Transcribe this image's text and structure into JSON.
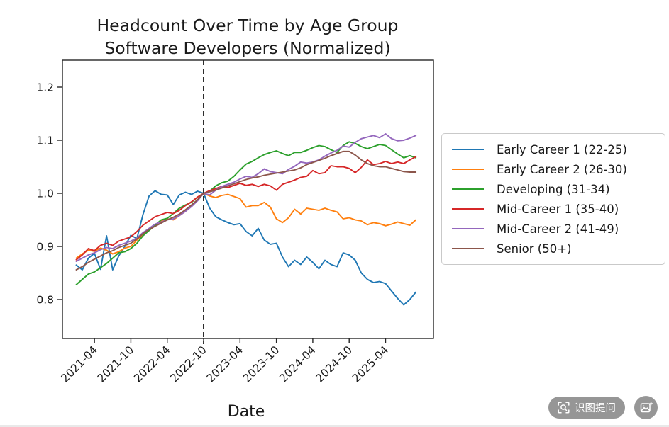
{
  "title": {
    "line1": "Headcount Over Time by Age Group",
    "line2": "Software Developers (Normalized)"
  },
  "axes": {
    "xlabel": "Date",
    "y_ticks": [
      {
        "label": "0.8",
        "value": 0.8
      },
      {
        "label": "0.9",
        "value": 0.9
      },
      {
        "label": "1.0",
        "value": 1.0
      },
      {
        "label": "1.1",
        "value": 1.1
      },
      {
        "label": "1.2",
        "value": 1.2
      }
    ],
    "x_ticks": [
      {
        "label": "2021-04",
        "month": "2021-04"
      },
      {
        "label": "2021-10",
        "month": "2021-10"
      },
      {
        "label": "2022-04",
        "month": "2022-04"
      },
      {
        "label": "2022-10",
        "month": "2022-10"
      },
      {
        "label": "2023-04",
        "month": "2023-04"
      },
      {
        "label": "2023-10",
        "month": "2023-10"
      },
      {
        "label": "2024-04",
        "month": "2024-04"
      },
      {
        "label": "2024-10",
        "month": "2024-10"
      },
      {
        "label": "2025-04",
        "month": "2025-04"
      }
    ]
  },
  "chart_data": {
    "type": "line",
    "title_line1": "Headcount Over Time by Age Group",
    "title_line2": "Software Developers (Normalized)",
    "xlabel": "Date",
    "ylim": [
      0.73,
      1.25
    ],
    "grid": false,
    "legend_position": "right-outside",
    "normalization_note_visible": false,
    "vline": {
      "x": "2022-10",
      "style": "dashed",
      "color": "#000000"
    },
    "months": [
      "2021-01",
      "2021-02",
      "2021-03",
      "2021-04",
      "2021-05",
      "2021-06",
      "2021-07",
      "2021-08",
      "2021-09",
      "2021-10",
      "2021-11",
      "2021-12",
      "2022-01",
      "2022-02",
      "2022-03",
      "2022-04",
      "2022-05",
      "2022-06",
      "2022-07",
      "2022-08",
      "2022-09",
      "2022-10",
      "2022-11",
      "2022-12",
      "2023-01",
      "2023-02",
      "2023-03",
      "2023-04",
      "2023-05",
      "2023-06",
      "2023-07",
      "2023-08",
      "2023-09",
      "2023-10",
      "2023-11",
      "2023-12",
      "2024-01",
      "2024-02",
      "2024-03",
      "2024-04",
      "2024-05",
      "2024-06",
      "2024-07",
      "2024-08",
      "2024-09",
      "2024-10",
      "2024-11",
      "2024-12",
      "2025-01",
      "2025-02",
      "2025-03",
      "2025-04",
      "2025-05",
      "2025-06",
      "2025-07",
      "2025-08",
      "2025-09"
    ],
    "series": [
      {
        "name": "Early Career 1 (22-25)",
        "color": "#1f77b4",
        "values": [
          0.865,
          0.856,
          0.878,
          0.887,
          0.857,
          0.92,
          0.856,
          0.882,
          0.9,
          0.921,
          0.915,
          0.96,
          0.995,
          1.005,
          0.998,
          0.997,
          0.979,
          0.997,
          1.002,
          0.998,
          1.004,
          1.0,
          0.972,
          0.956,
          0.95,
          0.945,
          0.941,
          0.943,
          0.928,
          0.92,
          0.934,
          0.912,
          0.904,
          0.906,
          0.88,
          0.862,
          0.874,
          0.866,
          0.88,
          0.87,
          0.858,
          0.874,
          0.866,
          0.862,
          0.888,
          0.884,
          0.874,
          0.85,
          0.838,
          0.832,
          0.834,
          0.83,
          0.816,
          0.802,
          0.79,
          0.8,
          0.814
        ]
      },
      {
        "name": "Early Career 2 (26-30)",
        "color": "#ff7f0e",
        "values": [
          0.878,
          0.886,
          0.893,
          0.891,
          0.897,
          0.893,
          0.886,
          0.89,
          0.897,
          0.9,
          0.912,
          0.922,
          0.93,
          0.94,
          0.948,
          0.952,
          0.95,
          0.958,
          0.966,
          0.976,
          0.988,
          1.0,
          0.995,
          0.992,
          0.996,
          0.998,
          0.994,
          0.99,
          0.974,
          0.977,
          0.977,
          0.983,
          0.974,
          0.952,
          0.945,
          0.954,
          0.97,
          0.961,
          0.972,
          0.97,
          0.968,
          0.972,
          0.968,
          0.965,
          0.952,
          0.954,
          0.95,
          0.948,
          0.941,
          0.945,
          0.943,
          0.939,
          0.942,
          0.946,
          0.943,
          0.94,
          0.95
        ]
      },
      {
        "name": "Developing (31-34)",
        "color": "#2ca02c",
        "values": [
          0.828,
          0.838,
          0.848,
          0.852,
          0.86,
          0.868,
          0.878,
          0.888,
          0.89,
          0.896,
          0.906,
          0.92,
          0.93,
          0.94,
          0.95,
          0.953,
          0.962,
          0.972,
          0.978,
          0.983,
          0.993,
          1.0,
          1.004,
          1.014,
          1.02,
          1.023,
          1.032,
          1.044,
          1.055,
          1.06,
          1.067,
          1.073,
          1.077,
          1.08,
          1.075,
          1.071,
          1.077,
          1.077,
          1.081,
          1.086,
          1.09,
          1.088,
          1.082,
          1.077,
          1.09,
          1.097,
          1.094,
          1.088,
          1.084,
          1.088,
          1.092,
          1.09,
          1.082,
          1.074,
          1.067,
          1.071,
          1.067
        ]
      },
      {
        "name": "Mid-Career 1 (35-40)",
        "color": "#d62728",
        "values": [
          0.875,
          0.884,
          0.896,
          0.892,
          0.902,
          0.906,
          0.902,
          0.91,
          0.914,
          0.918,
          0.928,
          0.94,
          0.948,
          0.956,
          0.96,
          0.964,
          0.962,
          0.968,
          0.977,
          0.984,
          0.993,
          1.0,
          1.005,
          1.009,
          1.013,
          1.011,
          1.015,
          1.019,
          1.015,
          1.017,
          1.013,
          1.017,
          1.014,
          1.006,
          1.017,
          1.021,
          1.025,
          1.03,
          1.032,
          1.043,
          1.037,
          1.039,
          1.052,
          1.05,
          1.05,
          1.047,
          1.039,
          1.049,
          1.063,
          1.054,
          1.056,
          1.06,
          1.056,
          1.059,
          1.056,
          1.063,
          1.069
        ]
      },
      {
        "name": "Mid-Career 2 (41-49)",
        "color": "#9467bd",
        "values": [
          0.872,
          0.878,
          0.884,
          0.888,
          0.894,
          0.898,
          0.896,
          0.902,
          0.906,
          0.91,
          0.916,
          0.926,
          0.934,
          0.942,
          0.946,
          0.95,
          0.952,
          0.958,
          0.966,
          0.975,
          0.986,
          1.0,
          0.997,
          1.006,
          1.013,
          1.017,
          1.021,
          1.027,
          1.032,
          1.03,
          1.037,
          1.046,
          1.041,
          1.039,
          1.037,
          1.045,
          1.051,
          1.059,
          1.057,
          1.059,
          1.063,
          1.07,
          1.076,
          1.081,
          1.089,
          1.087,
          1.096,
          1.103,
          1.106,
          1.109,
          1.105,
          1.112,
          1.103,
          1.099,
          1.1,
          1.104,
          1.109
        ]
      },
      {
        "name": "Senior (50+)",
        "color": "#8c564b",
        "values": [
          0.856,
          0.862,
          0.87,
          0.876,
          0.882,
          0.888,
          0.892,
          0.898,
          0.902,
          0.906,
          0.914,
          0.924,
          0.932,
          0.938,
          0.944,
          0.95,
          0.955,
          0.961,
          0.969,
          0.978,
          0.988,
          1.0,
          1.003,
          1.006,
          1.01,
          1.014,
          1.018,
          1.022,
          1.026,
          1.029,
          1.031,
          1.034,
          1.036,
          1.038,
          1.04,
          1.042,
          1.044,
          1.048,
          1.054,
          1.058,
          1.062,
          1.066,
          1.071,
          1.075,
          1.079,
          1.079,
          1.072,
          1.063,
          1.056,
          1.052,
          1.05,
          1.05,
          1.047,
          1.044,
          1.041,
          1.04,
          1.04
        ]
      }
    ]
  },
  "overlay": {
    "ask_button_label": "识图提问",
    "ask_button_icon": "scan-image-icon",
    "add_image_button_icon": "add-image-icon",
    "button_color": "#8b8b8b"
  }
}
